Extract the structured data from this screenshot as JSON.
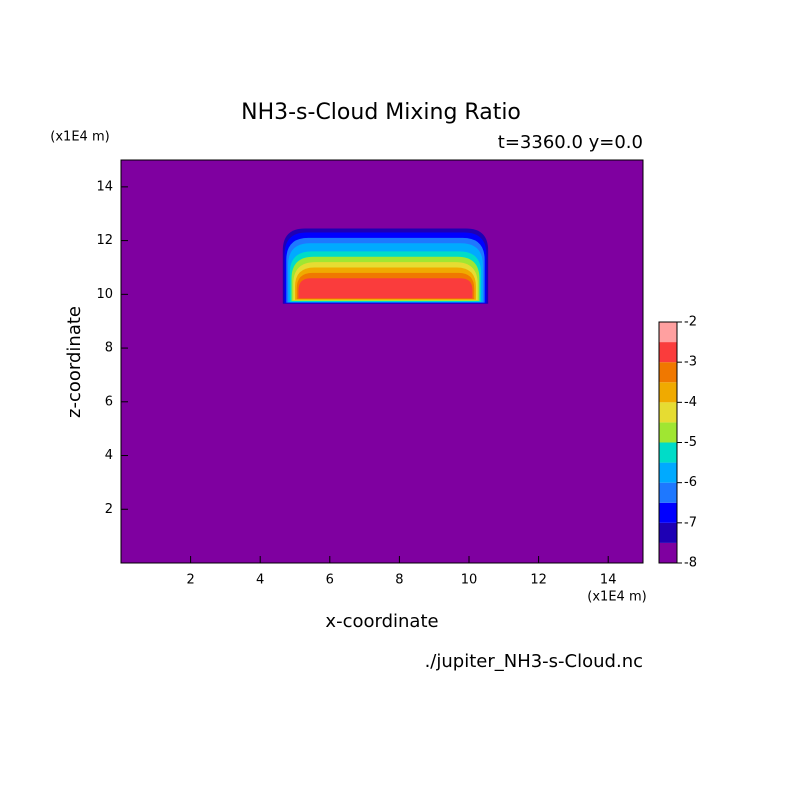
{
  "chart_data": {
    "type": "filled-contour",
    "title": "NH3-s-Cloud Mixing Ratio",
    "subtitle": "t=3360.0 y=0.0",
    "x_label": "x-coordinate",
    "y_label": "z-coordinate",
    "x_unit": "(x1E4 m)",
    "y_unit": "(x1E4 m)",
    "source": "./jupiter_NH3-s-Cloud.nc",
    "xlim": [
      0,
      15
    ],
    "ylim": [
      0,
      15
    ],
    "xticks": [
      2,
      4,
      6,
      8,
      10,
      12,
      14
    ],
    "yticks": [
      2,
      4,
      6,
      8,
      10,
      12,
      14
    ],
    "levels": [
      -8,
      -7.5,
      -7,
      -6.5,
      -6,
      -5.5,
      -5,
      -4.5,
      -4,
      -3.5,
      -3,
      -2.5,
      -2
    ],
    "colors": [
      "#7f00a0",
      "#1e00b4",
      "#0000ff",
      "#1e78ff",
      "#00aaff",
      "#00dcc8",
      "#a0e632",
      "#e6dc32",
      "#f0aa00",
      "#f07800",
      "#fa3c3c",
      "#ffa0a0"
    ],
    "colorbar_ticks": [
      -8,
      -7,
      -6,
      -5,
      -4,
      -3,
      -2
    ],
    "regions": [
      {
        "level": -7.5,
        "x": [
          4.65,
          10.55
        ],
        "z": [
          9.65,
          12.45
        ]
      },
      {
        "level": -7,
        "x": [
          4.7,
          10.5
        ],
        "z": [
          9.67,
          12.3
        ]
      },
      {
        "level": -6.5,
        "x": [
          4.75,
          10.45
        ],
        "z": [
          9.69,
          12.1
        ]
      },
      {
        "level": -6,
        "x": [
          4.8,
          10.4
        ],
        "z": [
          9.7,
          11.9
        ]
      },
      {
        "level": -5.5,
        "x": [
          4.85,
          10.35
        ],
        "z": [
          9.72,
          11.6
        ]
      },
      {
        "level": -5,
        "x": [
          4.9,
          10.3
        ],
        "z": [
          9.75,
          11.4
        ]
      },
      {
        "level": -4.5,
        "x": [
          4.95,
          10.25
        ],
        "z": [
          9.78,
          11.2
        ]
      },
      {
        "level": -4,
        "x": [
          5.0,
          10.2
        ],
        "z": [
          9.8,
          11.0
        ]
      },
      {
        "level": -3.5,
        "x": [
          5.05,
          10.15
        ],
        "z": [
          9.82,
          10.8
        ]
      },
      {
        "level": -3,
        "x": [
          5.1,
          10.1
        ],
        "z": [
          9.85,
          10.6
        ]
      }
    ]
  }
}
